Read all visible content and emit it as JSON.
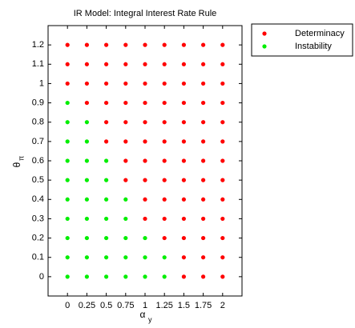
{
  "chart_data": {
    "type": "scatter",
    "title": "IR Model: Integral Interest Rate Rule",
    "xlabel": "α",
    "xlabel_sub": "y",
    "ylabel": "θ",
    "ylabel_sub": "π",
    "xlim": [
      -0.25,
      2.25
    ],
    "xticks": [
      0,
      0.25,
      0.5,
      0.75,
      1,
      1.25,
      1.5,
      1.75,
      2
    ],
    "ylim": [
      -0.1,
      1.3
    ],
    "yticks": [
      0,
      0.1,
      0.2,
      0.3,
      0.4,
      0.5,
      0.6,
      0.7,
      0.8,
      0.9,
      1,
      1.1,
      1.2
    ],
    "legend": "outside-top-right",
    "series": [
      {
        "name": "Determinacy",
        "color": "#ff0000",
        "x": [
          1.5,
          1.75,
          2,
          1.5,
          1.75,
          2,
          1.25,
          1.5,
          1.75,
          2,
          1,
          1.25,
          1.5,
          1.75,
          2,
          1,
          1.25,
          1.5,
          1.75,
          2,
          0.75,
          1,
          1.25,
          1.5,
          1.75,
          2,
          0.75,
          1,
          1.25,
          1.5,
          1.75,
          2,
          0.5,
          0.75,
          1,
          1.25,
          1.5,
          1.75,
          2,
          0.5,
          0.75,
          1,
          1.25,
          1.5,
          1.75,
          2,
          0.25,
          0.5,
          0.75,
          1,
          1.25,
          1.5,
          1.75,
          2,
          0,
          0.25,
          0.5,
          0.75,
          1,
          1.25,
          1.5,
          1.75,
          2,
          0,
          0.25,
          0.5,
          0.75,
          1,
          1.25,
          1.5,
          1.75,
          2,
          0,
          0.25,
          0.5,
          0.75,
          1,
          1.25,
          1.5,
          1.75,
          2
        ],
        "y": [
          0,
          0,
          0,
          0.1,
          0.1,
          0.1,
          0.2,
          0.2,
          0.2,
          0.2,
          0.3,
          0.3,
          0.3,
          0.3,
          0.3,
          0.4,
          0.4,
          0.4,
          0.4,
          0.4,
          0.5,
          0.5,
          0.5,
          0.5,
          0.5,
          0.5,
          0.6,
          0.6,
          0.6,
          0.6,
          0.6,
          0.6,
          0.7,
          0.7,
          0.7,
          0.7,
          0.7,
          0.7,
          0.7,
          0.8,
          0.8,
          0.8,
          0.8,
          0.8,
          0.8,
          0.8,
          0.9,
          0.9,
          0.9,
          0.9,
          0.9,
          0.9,
          0.9,
          0.9,
          1,
          1,
          1,
          1,
          1,
          1,
          1,
          1,
          1,
          1.1,
          1.1,
          1.1,
          1.1,
          1.1,
          1.1,
          1.1,
          1.1,
          1.1,
          1.2,
          1.2,
          1.2,
          1.2,
          1.2,
          1.2,
          1.2,
          1.2,
          1.2
        ]
      },
      {
        "name": "Instability",
        "color": "#00ee00",
        "x": [
          0,
          0.25,
          0.5,
          0.75,
          1,
          1.25,
          0,
          0.25,
          0.5,
          0.75,
          1,
          1.25,
          0,
          0.25,
          0.5,
          0.75,
          1,
          0,
          0.25,
          0.5,
          0.75,
          0,
          0.25,
          0.5,
          0.75,
          0,
          0.25,
          0.5,
          0,
          0.25,
          0.5,
          0,
          0.25,
          0,
          0.25,
          0
        ],
        "y": [
          0,
          0,
          0,
          0,
          0,
          0,
          0.1,
          0.1,
          0.1,
          0.1,
          0.1,
          0.1,
          0.2,
          0.2,
          0.2,
          0.2,
          0.2,
          0.3,
          0.3,
          0.3,
          0.3,
          0.4,
          0.4,
          0.4,
          0.4,
          0.5,
          0.5,
          0.5,
          0.6,
          0.6,
          0.6,
          0.7,
          0.7,
          0.8,
          0.8,
          0.9
        ]
      }
    ]
  }
}
